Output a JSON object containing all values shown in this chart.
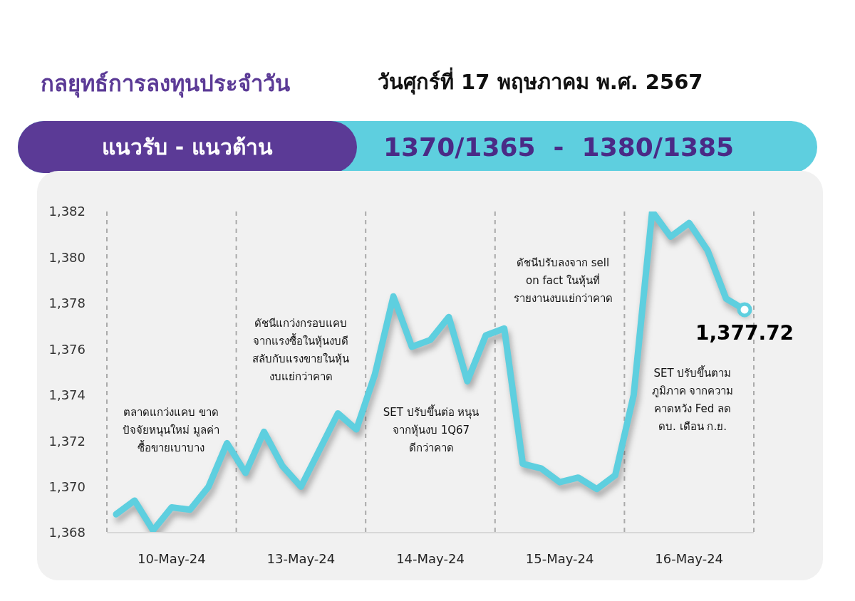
{
  "chart_data": {
    "type": "line",
    "title": "กลยุทธ์การลงทุนประจำวัน",
    "subtitle": "วันศุกร์ที่ 17 พฤษภาคม พ.ศ. 2567",
    "annotations": [
      "แนวรับ - แนวต้าน",
      "1370/1365  -  1380/1385",
      "ตลาดแกว่งแคบ ขาด\nปัจจัยหนุนใหม่ มูลค่า\nซื้อขายเบาบาง",
      "ดัชนีแกว่งกรอบแคบ\nจากแรงซื้อในหุ้นงบดี\nสลับกับแรงขายในหุ้น\nงบแย่กว่าคาด",
      "SET ปรับขึ้นต่อ หนุน\nจากหุ้นงบ 1Q67\nดีกว่าคาด",
      "ดัชนีปรับลงจาก sell\non fact ในหุ้นที่\nรายงานงบแย่กว่าคาด",
      "SET ปรับขึ้นตาม\nภูมิภาค จากความ\nคาดหวัง Fed ลด\nดบ. เดือน ก.ย.",
      {
        "text": "1,377.72",
        "y": 1377.72
      }
    ],
    "categories": [
      null,
      null,
      null,
      "10-May-24",
      null,
      null,
      null,
      null,
      null,
      null,
      "13-May-24",
      null,
      null,
      null,
      null,
      null,
      null,
      "14-May-24",
      null,
      null,
      null,
      null,
      null,
      null,
      "15-May-24",
      null,
      null,
      null,
      null,
      null,
      null,
      "16-May-24",
      null,
      null,
      null
    ],
    "series": [
      {
        "color": "#5ecfdf",
        "values": [
          1368.8,
          1369.4,
          1368.1,
          1369.1,
          1369.0,
          1370.0,
          1371.9,
          1370.6,
          1372.4,
          1370.9,
          1370.0,
          1371.6,
          1373.2,
          1372.5,
          1374.9,
          1378.3,
          1376.1,
          1376.4,
          1377.4,
          1374.6,
          1376.6,
          1376.9,
          1371.0,
          1370.8,
          1370.2,
          1370.4,
          1369.9,
          1370.5,
          1374.0,
          1382.0,
          1380.9,
          1381.5,
          1380.3,
          1378.2,
          1377.72
        ]
      }
    ],
    "ylim": [
      1368,
      1382
    ],
    "yticks": [
      {
        "value": 1368,
        "label": "1,368"
      },
      {
        "value": 1370,
        "label": "1,370"
      },
      {
        "value": 1372,
        "label": "1,372"
      },
      {
        "value": 1374,
        "label": "1,374"
      },
      {
        "value": 1376,
        "label": "1,376"
      },
      {
        "value": 1378,
        "label": "1,378"
      },
      {
        "value": 1380,
        "label": "1,380"
      },
      {
        "value": 1382,
        "label": "1,382"
      }
    ],
    "marker": "none",
    "line_style": "solid"
  }
}
